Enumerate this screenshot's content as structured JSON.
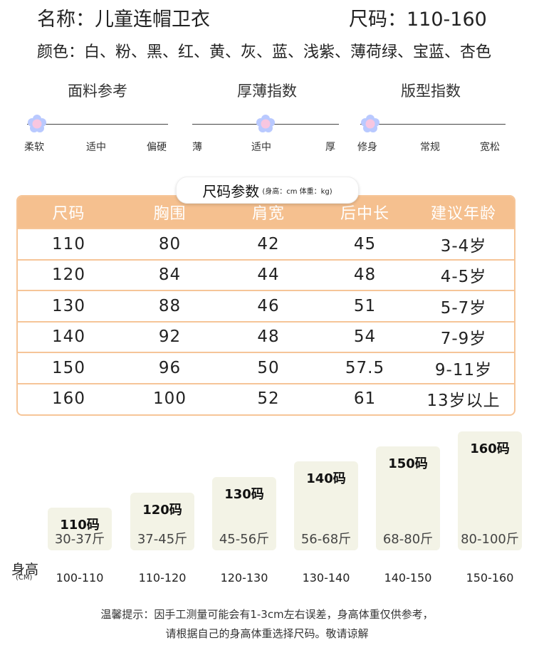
{
  "header": {
    "name_line": "名称：儿童连帽卫衣",
    "size_line": "尺码：110-160",
    "color_line": "颜色：白、粉、黑、红、黄、灰、蓝、浅紫、薄荷绿、宝蓝、杏色"
  },
  "indices": [
    {
      "title": "面料参考",
      "labels": [
        "柔软",
        "适中",
        "偏硬"
      ],
      "level": 0.0
    },
    {
      "title": "厚薄指数",
      "labels": [
        "薄",
        "适中",
        "厚"
      ],
      "level": 0.5
    },
    {
      "title": "版型指数",
      "labels": [
        "修身",
        "常规",
        "宽松"
      ],
      "level": 0.0
    }
  ],
  "table": {
    "caption_main": "尺码参数",
    "caption_sub": "(身高：cm 体重：kg)",
    "headers": [
      "尺码",
      "胸围",
      "肩宽",
      "后中长",
      "建议年龄"
    ],
    "rows": [
      [
        "110",
        "80",
        "42",
        "45",
        "3-4岁"
      ],
      [
        "120",
        "84",
        "44",
        "48",
        "4-5岁"
      ],
      [
        "130",
        "88",
        "46",
        "51",
        "5-7岁"
      ],
      [
        "140",
        "92",
        "48",
        "54",
        "7-9岁"
      ],
      [
        "150",
        "96",
        "50",
        "57.5",
        "9-11岁"
      ],
      [
        "160",
        "100",
        "52",
        "61",
        "13岁以上"
      ]
    ]
  },
  "size_chart": {
    "height_label": "身高",
    "unit_label": "(CM)",
    "items": [
      {
        "size": "110码",
        "weight": "30-37斤",
        "height": "100-110"
      },
      {
        "size": "120码",
        "weight": "37-45斤",
        "height": "110-120"
      },
      {
        "size": "130码",
        "weight": "45-56斤",
        "height": "120-130"
      },
      {
        "size": "140码",
        "weight": "56-68斤",
        "height": "130-140"
      },
      {
        "size": "150码",
        "weight": "68-80斤",
        "height": "140-150"
      },
      {
        "size": "160码",
        "weight": "80-100斤",
        "height": "150-160"
      }
    ]
  },
  "note": {
    "line1": "温馨提示：因手工测量可能会有1-3cm左右误差，身高体重仅供参考，",
    "line2": "请根据自己的身高体重选择尺码。敬请谅解"
  },
  "colors": {
    "accent": "#f5c08f",
    "card": "#f3f3e6",
    "flower": "#f7c6e0",
    "flower_petal": "#b9c9ff"
  }
}
